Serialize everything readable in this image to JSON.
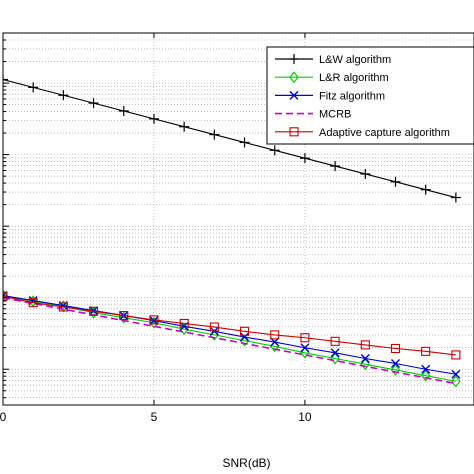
{
  "chart_data": {
    "type": "line",
    "xlabel": "SNR(dB)",
    "ylabel": "",
    "xlim": [
      0,
      15.6
    ],
    "ylim": [
      -6.5,
      -1.3
    ],
    "yscale": "log",
    "grid": true,
    "legend_position": "top-right",
    "x_ticks": [
      0,
      5,
      10
    ],
    "x_tick_labels": [
      "0",
      "5",
      "10"
    ],
    "x": [
      0,
      1,
      2,
      3,
      4,
      5,
      6,
      7,
      8,
      9,
      10,
      11,
      12,
      13,
      14,
      15
    ],
    "series": [
      {
        "name": "L&W algorithm",
        "color": "#000000",
        "marker": "plus",
        "dashed": false,
        "values": [
          -1.95,
          -2.06,
          -2.17,
          -2.28,
          -2.39,
          -2.5,
          -2.61,
          -2.72,
          -2.83,
          -2.94,
          -3.05,
          -3.16,
          -3.27,
          -3.38,
          -3.49,
          -3.6
        ]
      },
      {
        "name": "L&R algorithm",
        "color": "#00cc00",
        "marker": "diamond",
        "dashed": false,
        "values": [
          -4.97,
          -5.05,
          -5.12,
          -5.21,
          -5.28,
          -5.35,
          -5.44,
          -5.52,
          -5.6,
          -5.68,
          -5.77,
          -5.85,
          -5.93,
          -6.01,
          -6.09,
          -6.17
        ]
      },
      {
        "name": "Fitz algorithm",
        "color": "#0000cc",
        "marker": "x",
        "dashed": false,
        "values": [
          -4.97,
          -5.04,
          -5.11,
          -5.18,
          -5.25,
          -5.32,
          -5.4,
          -5.47,
          -5.55,
          -5.62,
          -5.7,
          -5.77,
          -5.85,
          -5.92,
          -6.0,
          -6.07
        ]
      },
      {
        "name": "MCRB",
        "color": "#cc00cc",
        "marker": "none",
        "dashed": true,
        "values": [
          -5.0,
          -5.08,
          -5.16,
          -5.24,
          -5.32,
          -5.4,
          -5.48,
          -5.56,
          -5.64,
          -5.72,
          -5.8,
          -5.88,
          -5.96,
          -6.04,
          -6.12,
          -6.2
        ]
      },
      {
        "name": "Adaptive capture algorithm",
        "color": "#cc0000",
        "marker": "square",
        "dashed": false,
        "values": [
          -4.98,
          -5.07,
          -5.13,
          -5.19,
          -5.25,
          -5.31,
          -5.36,
          -5.41,
          -5.47,
          -5.52,
          -5.56,
          -5.61,
          -5.66,
          -5.71,
          -5.75,
          -5.8
        ]
      }
    ]
  }
}
